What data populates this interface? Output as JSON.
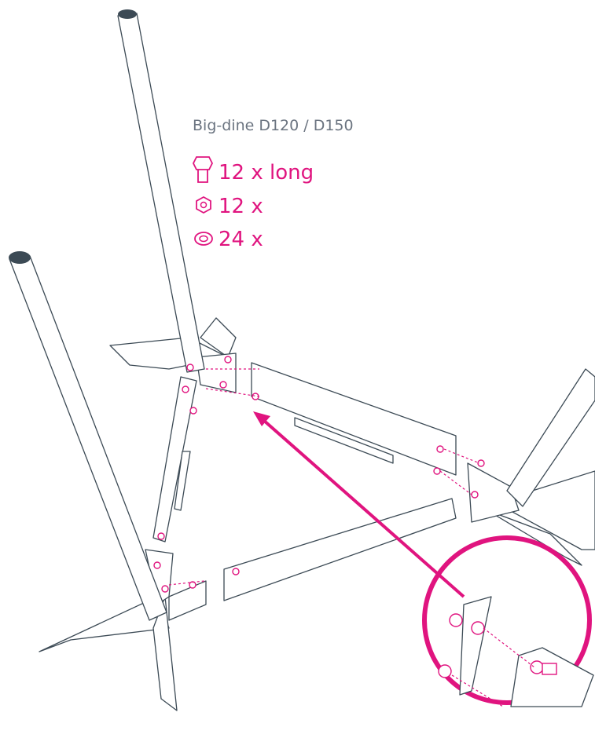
{
  "title": "Big-dine D120 / D150",
  "parts": [
    {
      "label": "12 x long"
    },
    {
      "label": "12 x"
    },
    {
      "label": "24 x"
    }
  ]
}
